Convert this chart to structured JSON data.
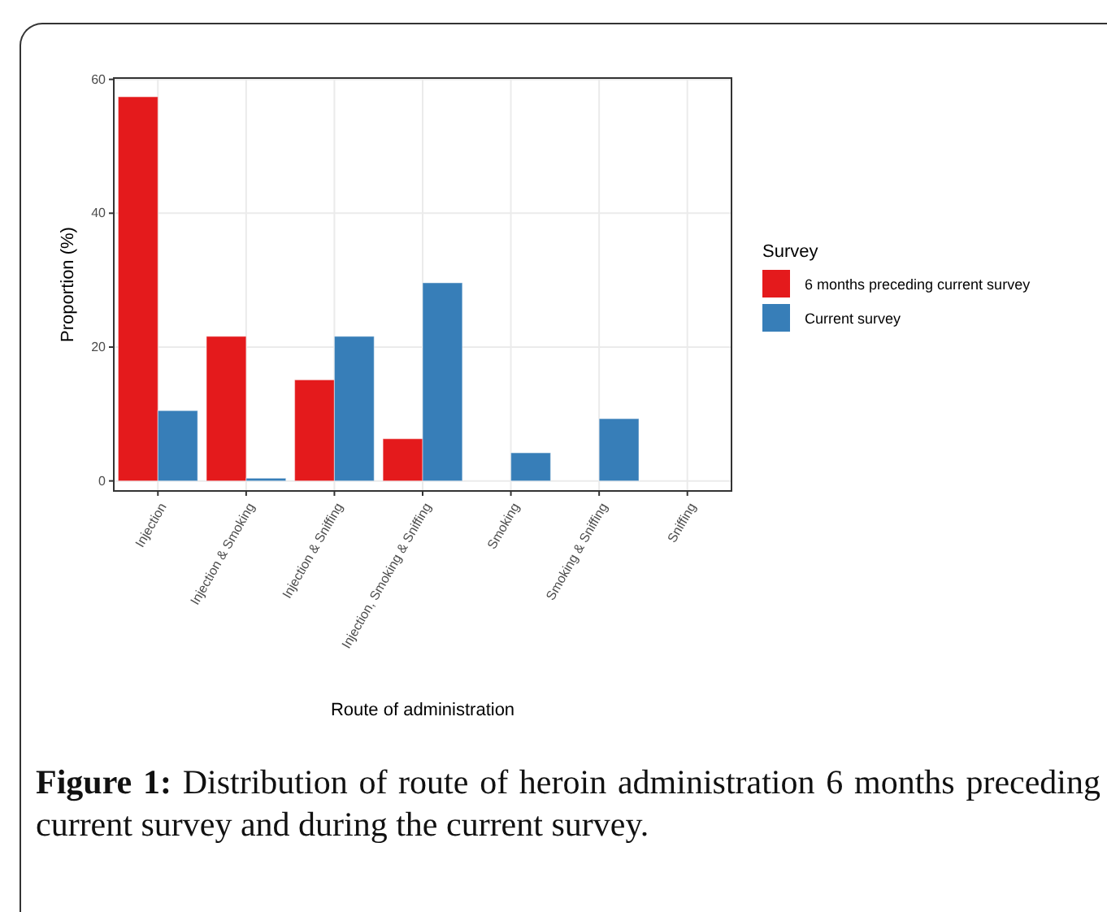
{
  "chart_data": {
    "type": "bar",
    "xlabel": "Route of administration",
    "ylabel": "Proportion (%)",
    "legend_title": "Survey",
    "legend": "right",
    "categories": [
      "Injection",
      "Injection & Smoking",
      "Injection & Sniffing",
      "Injection, Smoking & Sniffing",
      "Smoking",
      "Smoking & Sniffing",
      "Sniffing"
    ],
    "series": [
      {
        "name": "6 months preceding current survey",
        "color": "#e41a1c",
        "values": [
          57.4,
          21.6,
          15.1,
          6.3,
          0,
          0,
          0
        ]
      },
      {
        "name": "Current survey",
        "color": "#377eb8",
        "values": [
          10.5,
          0.4,
          21.6,
          29.6,
          4.2,
          9.3,
          0
        ]
      }
    ],
    "ylim": [
      -1.5,
      60.2
    ],
    "yticks": [
      0,
      20,
      40,
      60
    ],
    "grid": true,
    "annotations": [
      "Figure 1: Distribution of route of heroin administration 6 months preceding current survey and during the current survey."
    ]
  }
}
